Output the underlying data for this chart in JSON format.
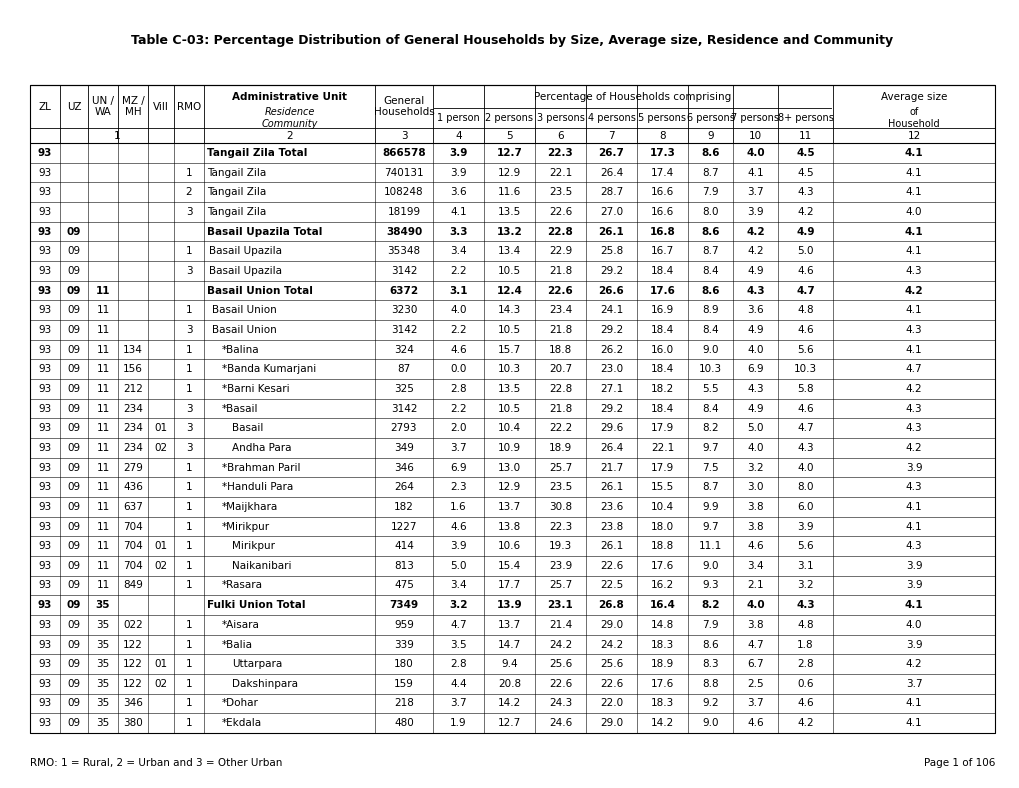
{
  "title": "Table C-03: Percentage Distribution of General Households by Size, Average size, Residence and Community",
  "footer_note": "RMO: 1 = Rural, 2 = Urban and 3 = Other Urban",
  "page_note": "Page 1 of 106",
  "rows": [
    {
      "zl": "93",
      "uz": "",
      "un": "",
      "mz": "",
      "vill": "",
      "rmo": "",
      "name": "Tangail Zila Total",
      "gen": "866578",
      "c1": "3.9",
      "c2": "12.7",
      "c3": "22.3",
      "c4": "26.7",
      "c5": "17.3",
      "c6": "8.6",
      "c7": "4.0",
      "c8": "4.5",
      "avg": "4.1",
      "bold": true
    },
    {
      "zl": "93",
      "uz": "",
      "un": "",
      "mz": "",
      "vill": "",
      "rmo": "1",
      "name": "Tangail Zila",
      "gen": "740131",
      "c1": "3.9",
      "c2": "12.9",
      "c3": "22.1",
      "c4": "26.4",
      "c5": "17.4",
      "c6": "8.7",
      "c7": "4.1",
      "c8": "4.5",
      "avg": "4.1",
      "bold": false
    },
    {
      "zl": "93",
      "uz": "",
      "un": "",
      "mz": "",
      "vill": "",
      "rmo": "2",
      "name": "Tangail Zila",
      "gen": "108248",
      "c1": "3.6",
      "c2": "11.6",
      "c3": "23.5",
      "c4": "28.7",
      "c5": "16.6",
      "c6": "7.9",
      "c7": "3.7",
      "c8": "4.3",
      "avg": "4.1",
      "bold": false
    },
    {
      "zl": "93",
      "uz": "",
      "un": "",
      "mz": "",
      "vill": "",
      "rmo": "3",
      "name": "Tangail Zila",
      "gen": "18199",
      "c1": "4.1",
      "c2": "13.5",
      "c3": "22.6",
      "c4": "27.0",
      "c5": "16.6",
      "c6": "8.0",
      "c7": "3.9",
      "c8": "4.2",
      "avg": "4.0",
      "bold": false
    },
    {
      "zl": "93",
      "uz": "09",
      "un": "",
      "mz": "",
      "vill": "",
      "rmo": "",
      "name": "Basail Upazila Total",
      "gen": "38490",
      "c1": "3.3",
      "c2": "13.2",
      "c3": "22.8",
      "c4": "26.1",
      "c5": "16.8",
      "c6": "8.6",
      "c7": "4.2",
      "c8": "4.9",
      "avg": "4.1",
      "bold": true
    },
    {
      "zl": "93",
      "uz": "09",
      "un": "",
      "mz": "",
      "vill": "",
      "rmo": "1",
      "name": "Basail Upazila",
      "gen": "35348",
      "c1": "3.4",
      "c2": "13.4",
      "c3": "22.9",
      "c4": "25.8",
      "c5": "16.7",
      "c6": "8.7",
      "c7": "4.2",
      "c8": "5.0",
      "avg": "4.1",
      "bold": false
    },
    {
      "zl": "93",
      "uz": "09",
      "un": "",
      "mz": "",
      "vill": "",
      "rmo": "3",
      "name": "Basail Upazila",
      "gen": "3142",
      "c1": "2.2",
      "c2": "10.5",
      "c3": "21.8",
      "c4": "29.2",
      "c5": "18.4",
      "c6": "8.4",
      "c7": "4.9",
      "c8": "4.6",
      "avg": "4.3",
      "bold": false
    },
    {
      "zl": "93",
      "uz": "09",
      "un": "11",
      "mz": "",
      "vill": "",
      "rmo": "",
      "name": "Basail Union Total",
      "gen": "6372",
      "c1": "3.1",
      "c2": "12.4",
      "c3": "22.6",
      "c4": "26.6",
      "c5": "17.6",
      "c6": "8.6",
      "c7": "4.3",
      "c8": "4.7",
      "avg": "4.2",
      "bold": true
    },
    {
      "zl": "93",
      "uz": "09",
      "un": "11",
      "mz": "",
      "vill": "",
      "rmo": "1",
      "name": "Basail Union",
      "gen": "3230",
      "c1": "4.0",
      "c2": "14.3",
      "c3": "23.4",
      "c4": "24.1",
      "c5": "16.9",
      "c6": "8.9",
      "c7": "3.6",
      "c8": "4.8",
      "avg": "4.1",
      "bold": false
    },
    {
      "zl": "93",
      "uz": "09",
      "un": "11",
      "mz": "",
      "vill": "",
      "rmo": "3",
      "name": "Basail Union",
      "gen": "3142",
      "c1": "2.2",
      "c2": "10.5",
      "c3": "21.8",
      "c4": "29.2",
      "c5": "18.4",
      "c6": "8.4",
      "c7": "4.9",
      "c8": "4.6",
      "avg": "4.3",
      "bold": false
    },
    {
      "zl": "93",
      "uz": "09",
      "un": "11",
      "mz": "134",
      "vill": "",
      "rmo": "1",
      "name": "*Balina",
      "gen": "324",
      "c1": "4.6",
      "c2": "15.7",
      "c3": "18.8",
      "c4": "26.2",
      "c5": "16.0",
      "c6": "9.0",
      "c7": "4.0",
      "c8": "5.6",
      "avg": "4.1",
      "bold": false
    },
    {
      "zl": "93",
      "uz": "09",
      "un": "11",
      "mz": "156",
      "vill": "",
      "rmo": "1",
      "name": "*Banda Kumarjani",
      "gen": "87",
      "c1": "0.0",
      "c2": "10.3",
      "c3": "20.7",
      "c4": "23.0",
      "c5": "18.4",
      "c6": "10.3",
      "c7": "6.9",
      "c8": "10.3",
      "avg": "4.7",
      "bold": false
    },
    {
      "zl": "93",
      "uz": "09",
      "un": "11",
      "mz": "212",
      "vill": "",
      "rmo": "1",
      "name": "*Barni Kesari",
      "gen": "325",
      "c1": "2.8",
      "c2": "13.5",
      "c3": "22.8",
      "c4": "27.1",
      "c5": "18.2",
      "c6": "5.5",
      "c7": "4.3",
      "c8": "5.8",
      "avg": "4.2",
      "bold": false
    },
    {
      "zl": "93",
      "uz": "09",
      "un": "11",
      "mz": "234",
      "vill": "",
      "rmo": "3",
      "name": "*Basail",
      "gen": "3142",
      "c1": "2.2",
      "c2": "10.5",
      "c3": "21.8",
      "c4": "29.2",
      "c5": "18.4",
      "c6": "8.4",
      "c7": "4.9",
      "c8": "4.6",
      "avg": "4.3",
      "bold": false
    },
    {
      "zl": "93",
      "uz": "09",
      "un": "11",
      "mz": "234",
      "vill": "01",
      "rmo": "3",
      "name": "Basail",
      "gen": "2793",
      "c1": "2.0",
      "c2": "10.4",
      "c3": "22.2",
      "c4": "29.6",
      "c5": "17.9",
      "c6": "8.2",
      "c7": "5.0",
      "c8": "4.7",
      "avg": "4.3",
      "bold": false
    },
    {
      "zl": "93",
      "uz": "09",
      "un": "11",
      "mz": "234",
      "vill": "02",
      "rmo": "3",
      "name": "Andha Para",
      "gen": "349",
      "c1": "3.7",
      "c2": "10.9",
      "c3": "18.9",
      "c4": "26.4",
      "c5": "22.1",
      "c6": "9.7",
      "c7": "4.0",
      "c8": "4.3",
      "avg": "4.2",
      "bold": false
    },
    {
      "zl": "93",
      "uz": "09",
      "un": "11",
      "mz": "279",
      "vill": "",
      "rmo": "1",
      "name": "*Brahman Paril",
      "gen": "346",
      "c1": "6.9",
      "c2": "13.0",
      "c3": "25.7",
      "c4": "21.7",
      "c5": "17.9",
      "c6": "7.5",
      "c7": "3.2",
      "c8": "4.0",
      "avg": "3.9",
      "bold": false
    },
    {
      "zl": "93",
      "uz": "09",
      "un": "11",
      "mz": "436",
      "vill": "",
      "rmo": "1",
      "name": "*Handuli Para",
      "gen": "264",
      "c1": "2.3",
      "c2": "12.9",
      "c3": "23.5",
      "c4": "26.1",
      "c5": "15.5",
      "c6": "8.7",
      "c7": "3.0",
      "c8": "8.0",
      "avg": "4.3",
      "bold": false
    },
    {
      "zl": "93",
      "uz": "09",
      "un": "11",
      "mz": "637",
      "vill": "",
      "rmo": "1",
      "name": "*Maijkhara",
      "gen": "182",
      "c1": "1.6",
      "c2": "13.7",
      "c3": "30.8",
      "c4": "23.6",
      "c5": "10.4",
      "c6": "9.9",
      "c7": "3.8",
      "c8": "6.0",
      "avg": "4.1",
      "bold": false
    },
    {
      "zl": "93",
      "uz": "09",
      "un": "11",
      "mz": "704",
      "vill": "",
      "rmo": "1",
      "name": "*Mirikpur",
      "gen": "1227",
      "c1": "4.6",
      "c2": "13.8",
      "c3": "22.3",
      "c4": "23.8",
      "c5": "18.0",
      "c6": "9.7",
      "c7": "3.8",
      "c8": "3.9",
      "avg": "4.1",
      "bold": false
    },
    {
      "zl": "93",
      "uz": "09",
      "un": "11",
      "mz": "704",
      "vill": "01",
      "rmo": "1",
      "name": "Mirikpur",
      "gen": "414",
      "c1": "3.9",
      "c2": "10.6",
      "c3": "19.3",
      "c4": "26.1",
      "c5": "18.8",
      "c6": "11.1",
      "c7": "4.6",
      "c8": "5.6",
      "avg": "4.3",
      "bold": false
    },
    {
      "zl": "93",
      "uz": "09",
      "un": "11",
      "mz": "704",
      "vill": "02",
      "rmo": "1",
      "name": "Naikanibari",
      "gen": "813",
      "c1": "5.0",
      "c2": "15.4",
      "c3": "23.9",
      "c4": "22.6",
      "c5": "17.6",
      "c6": "9.0",
      "c7": "3.4",
      "c8": "3.1",
      "avg": "3.9",
      "bold": false
    },
    {
      "zl": "93",
      "uz": "09",
      "un": "11",
      "mz": "849",
      "vill": "",
      "rmo": "1",
      "name": "*Rasara",
      "gen": "475",
      "c1": "3.4",
      "c2": "17.7",
      "c3": "25.7",
      "c4": "22.5",
      "c5": "16.2",
      "c6": "9.3",
      "c7": "2.1",
      "c8": "3.2",
      "avg": "3.9",
      "bold": false
    },
    {
      "zl": "93",
      "uz": "09",
      "un": "35",
      "mz": "",
      "vill": "",
      "rmo": "",
      "name": "Fulki Union Total",
      "gen": "7349",
      "c1": "3.2",
      "c2": "13.9",
      "c3": "23.1",
      "c4": "26.8",
      "c5": "16.4",
      "c6": "8.2",
      "c7": "4.0",
      "c8": "4.3",
      "avg": "4.1",
      "bold": true
    },
    {
      "zl": "93",
      "uz": "09",
      "un": "35",
      "mz": "022",
      "vill": "",
      "rmo": "1",
      "name": "*Aisara",
      "gen": "959",
      "c1": "4.7",
      "c2": "13.7",
      "c3": "21.4",
      "c4": "29.0",
      "c5": "14.8",
      "c6": "7.9",
      "c7": "3.8",
      "c8": "4.8",
      "avg": "4.0",
      "bold": false
    },
    {
      "zl": "93",
      "uz": "09",
      "un": "35",
      "mz": "122",
      "vill": "",
      "rmo": "1",
      "name": "*Balia",
      "gen": "339",
      "c1": "3.5",
      "c2": "14.7",
      "c3": "24.2",
      "c4": "24.2",
      "c5": "18.3",
      "c6": "8.6",
      "c7": "4.7",
      "c8": "1.8",
      "avg": "3.9",
      "bold": false
    },
    {
      "zl": "93",
      "uz": "09",
      "un": "35",
      "mz": "122",
      "vill": "01",
      "rmo": "1",
      "name": "Uttarpara",
      "gen": "180",
      "c1": "2.8",
      "c2": "9.4",
      "c3": "25.6",
      "c4": "25.6",
      "c5": "18.9",
      "c6": "8.3",
      "c7": "6.7",
      "c8": "2.8",
      "avg": "4.2",
      "bold": false
    },
    {
      "zl": "93",
      "uz": "09",
      "un": "35",
      "mz": "122",
      "vill": "02",
      "rmo": "1",
      "name": "Dakshinpara",
      "gen": "159",
      "c1": "4.4",
      "c2": "20.8",
      "c3": "22.6",
      "c4": "22.6",
      "c5": "17.6",
      "c6": "8.8",
      "c7": "2.5",
      "c8": "0.6",
      "avg": "3.7",
      "bold": false
    },
    {
      "zl": "93",
      "uz": "09",
      "un": "35",
      "mz": "346",
      "vill": "",
      "rmo": "1",
      "name": "*Dohar",
      "gen": "218",
      "c1": "3.7",
      "c2": "14.2",
      "c3": "24.3",
      "c4": "22.0",
      "c5": "18.3",
      "c6": "9.2",
      "c7": "3.7",
      "c8": "4.6",
      "avg": "4.1",
      "bold": false
    },
    {
      "zl": "93",
      "uz": "09",
      "un": "35",
      "mz": "380",
      "vill": "",
      "rmo": "1",
      "name": "*Ekdala",
      "gen": "480",
      "c1": "1.9",
      "c2": "12.7",
      "c3": "24.6",
      "c4": "29.0",
      "c5": "14.2",
      "c6": "9.0",
      "c7": "4.6",
      "c8": "4.2",
      "avg": "4.1",
      "bold": false
    }
  ]
}
